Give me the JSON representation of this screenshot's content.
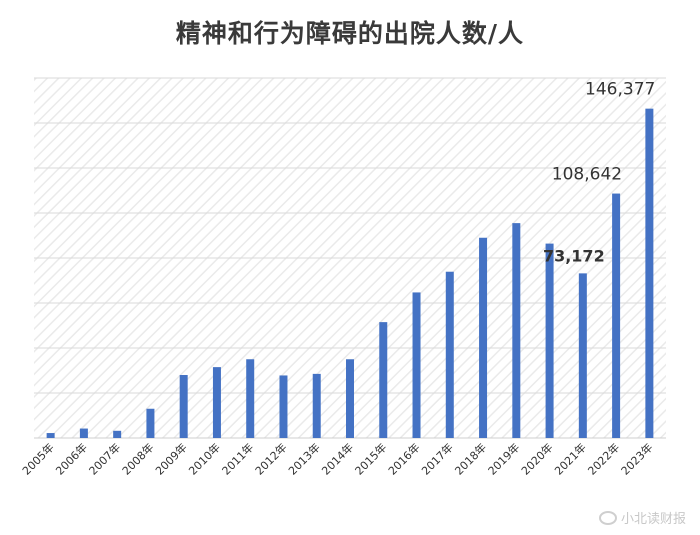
{
  "chart_data": {
    "type": "bar",
    "title": "精神和行为障碍的出院人数/人",
    "xlabel": "",
    "ylabel": "",
    "ylim": [
      0,
      160000
    ],
    "grid": true,
    "categories": [
      "2005年",
      "2006年",
      "2007年",
      "2008年",
      "2009年",
      "2010年",
      "2011年",
      "2012年",
      "2013年",
      "2014年",
      "2015年",
      "2016年",
      "2017年",
      "2018年",
      "2019年",
      "2020年",
      "2021年",
      "2022年",
      "2023年"
    ],
    "values": [
      2200,
      4200,
      3200,
      13000,
      28000,
      31500,
      35000,
      27800,
      28500,
      35000,
      51500,
      64700,
      73900,
      89000,
      95500,
      86400,
      73172,
      108642,
      146377
    ],
    "labels": [
      {
        "index": 16,
        "text": "73,172",
        "bold": true
      },
      {
        "index": 17,
        "text": "108,642",
        "bold": false
      },
      {
        "index": 18,
        "text": "146,377",
        "bold": false
      }
    ],
    "bar_color": "#4472c4"
  },
  "watermark": {
    "text": "小北读财报"
  }
}
